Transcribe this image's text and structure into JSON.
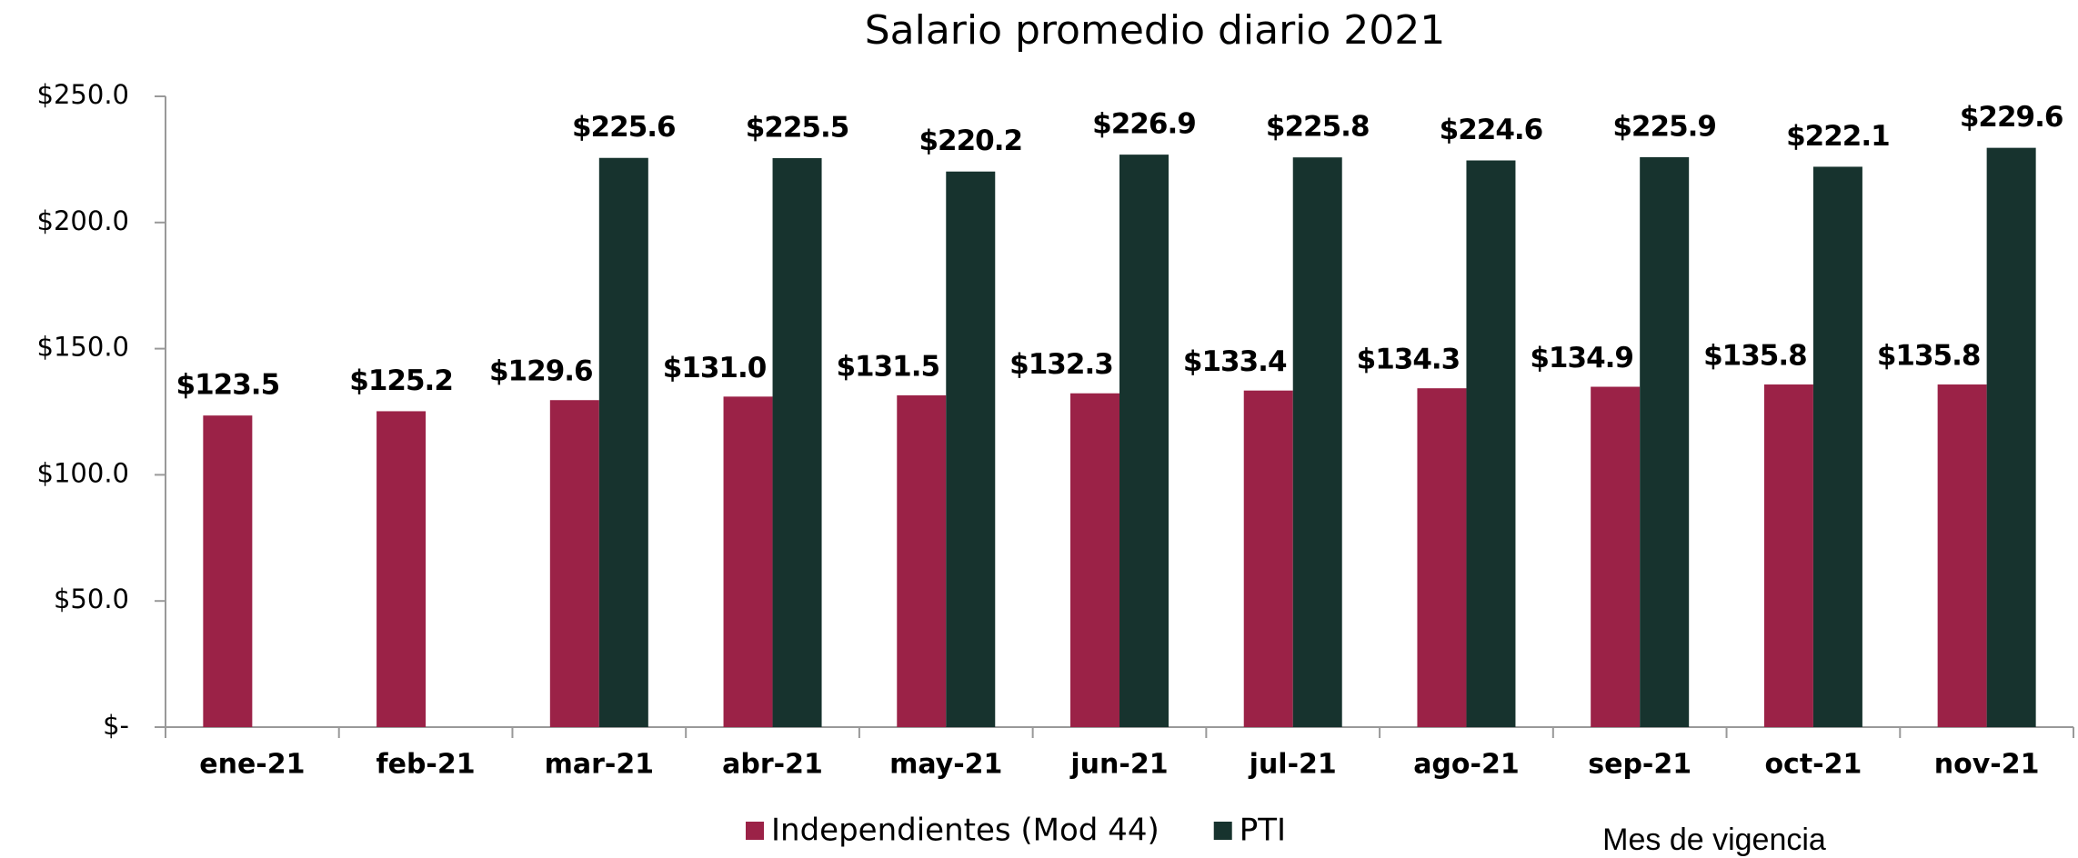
{
  "chart_data": {
    "type": "bar",
    "title": "Salario promedio diario 2021",
    "x_label": "Mes de vigencia",
    "categories": [
      "ene-21",
      "feb-21",
      "mar-21",
      "abr-21",
      "may-21",
      "jun-21",
      "jul-21",
      "ago-21",
      "sep-21",
      "oct-21",
      "nov-21"
    ],
    "series": [
      {
        "name": "Independientes (Mod 44)",
        "color": "#9b2247",
        "values": [
          123.5,
          125.2,
          129.6,
          131.0,
          131.5,
          132.3,
          133.4,
          134.3,
          134.9,
          135.8,
          135.8
        ],
        "value_labels": [
          "$123.5",
          "$125.2",
          "$129.6",
          "$131.0",
          "$131.5",
          "$132.3",
          "$133.4",
          "$134.3",
          "$134.9",
          "$135.8",
          "$135.8"
        ]
      },
      {
        "name": "PTI",
        "color": "#17332e",
        "values": [
          null,
          null,
          225.6,
          225.5,
          220.2,
          226.9,
          225.8,
          224.6,
          225.9,
          222.1,
          229.6
        ],
        "value_labels": [
          null,
          null,
          "$225.6",
          "$225.5",
          "$220.2",
          "$226.9",
          "$225.8",
          "$224.6",
          "$225.9",
          "$222.1",
          "$229.6"
        ]
      }
    ],
    "ylim": [
      0,
      250
    ],
    "yticks": [
      {
        "value": 0,
        "label": "$-"
      },
      {
        "value": 50,
        "label": "$50.0"
      },
      {
        "value": 100,
        "label": "$100.0"
      },
      {
        "value": 150,
        "label": "$150.0"
      },
      {
        "value": 200,
        "label": "$200.0"
      },
      {
        "value": 250,
        "label": "$250.0"
      }
    ],
    "grid": false,
    "legend": "bottom"
  }
}
